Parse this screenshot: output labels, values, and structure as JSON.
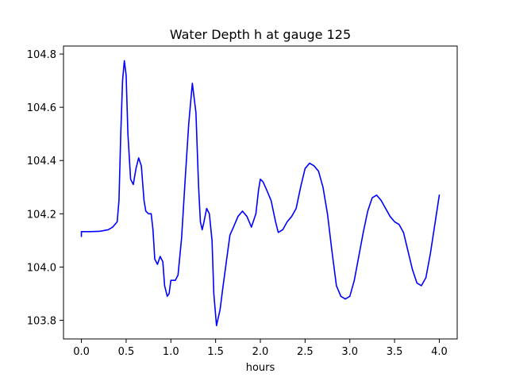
{
  "chart_data": {
    "type": "line",
    "title": "Water Depth h at gauge 125",
    "xlabel": "hours",
    "ylabel": "",
    "xlim": [
      -0.2,
      4.2
    ],
    "ylim": [
      103.73,
      104.83
    ],
    "xticks": [
      0.0,
      0.5,
      1.0,
      1.5,
      2.0,
      2.5,
      3.0,
      3.5,
      4.0
    ],
    "xtick_labels": [
      "0.0",
      "0.5",
      "1.0",
      "1.5",
      "2.0",
      "2.5",
      "3.0",
      "3.5",
      "4.0"
    ],
    "yticks": [
      103.8,
      104.0,
      104.2,
      104.4,
      104.6,
      104.8
    ],
    "ytick_labels": [
      "103.8",
      "104.0",
      "104.2",
      "104.4",
      "104.6",
      "104.8"
    ],
    "grid": false,
    "legend": "none",
    "series": [
      {
        "color": "#0000ff",
        "x": [
          0.0,
          0.0,
          0.05,
          0.1,
          0.2,
          0.3,
          0.35,
          0.4,
          0.42,
          0.44,
          0.46,
          0.48,
          0.5,
          0.52,
          0.55,
          0.58,
          0.61,
          0.64,
          0.67,
          0.7,
          0.72,
          0.75,
          0.78,
          0.8,
          0.82,
          0.85,
          0.88,
          0.91,
          0.93,
          0.96,
          0.98,
          1.0,
          1.02,
          1.05,
          1.08,
          1.12,
          1.16,
          1.2,
          1.24,
          1.28,
          1.31,
          1.33,
          1.35,
          1.37,
          1.4,
          1.43,
          1.46,
          1.48,
          1.51,
          1.55,
          1.58,
          1.62,
          1.66,
          1.7,
          1.75,
          1.8,
          1.85,
          1.9,
          1.95,
          1.98,
          2.0,
          2.03,
          2.07,
          2.12,
          2.17,
          2.2,
          2.25,
          2.3,
          2.35,
          2.4,
          2.45,
          2.5,
          2.55,
          2.6,
          2.65,
          2.7,
          2.75,
          2.8,
          2.85,
          2.9,
          2.95,
          3.0,
          3.05,
          3.1,
          3.15,
          3.2,
          3.25,
          3.3,
          3.35,
          3.4,
          3.45,
          3.5,
          3.55,
          3.6,
          3.65,
          3.7,
          3.75,
          3.8,
          3.85,
          3.9,
          3.95,
          4.0
        ],
        "y": [
          104.115,
          104.133,
          104.133,
          104.133,
          104.134,
          104.14,
          104.15,
          104.17,
          104.25,
          104.5,
          104.7,
          104.775,
          104.72,
          104.5,
          104.33,
          104.31,
          104.37,
          104.41,
          104.38,
          104.25,
          104.21,
          104.2,
          104.2,
          104.14,
          104.03,
          104.01,
          104.04,
          104.02,
          103.93,
          103.89,
          103.9,
          103.95,
          103.95,
          103.95,
          103.97,
          104.11,
          104.33,
          104.54,
          104.69,
          104.58,
          104.3,
          104.17,
          104.14,
          104.17,
          104.22,
          104.2,
          104.1,
          103.9,
          103.78,
          103.84,
          103.92,
          104.02,
          104.12,
          104.15,
          104.19,
          104.21,
          104.19,
          104.15,
          104.2,
          104.29,
          104.33,
          104.32,
          104.29,
          104.25,
          104.17,
          104.13,
          104.14,
          104.17,
          104.19,
          104.22,
          104.3,
          104.37,
          104.39,
          104.38,
          104.36,
          104.3,
          104.2,
          104.06,
          103.93,
          103.89,
          103.88,
          103.89,
          103.95,
          104.04,
          104.13,
          104.21,
          104.26,
          104.27,
          104.25,
          104.22,
          104.19,
          104.17,
          104.16,
          104.13,
          104.06,
          103.99,
          103.94,
          103.93,
          103.96,
          104.05,
          104.16,
          104.27
        ]
      }
    ]
  }
}
